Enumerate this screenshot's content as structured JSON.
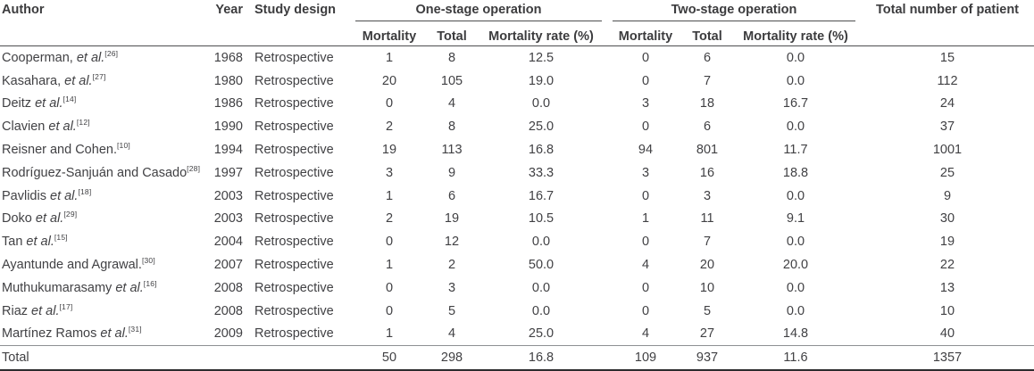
{
  "table": {
    "headers": {
      "author": "Author",
      "year": "Year",
      "study_design": "Study design",
      "one_stage": "One-stage operation",
      "two_stage": "Two-stage operation",
      "sub": [
        "Mortality",
        "Total",
        "Mortality rate (%)"
      ],
      "total_patients": "Total number of patient"
    },
    "rows": [
      {
        "author_name": "Cooperman,",
        "author_etal": "et al.",
        "ref": "[26]",
        "year": "1968",
        "design": "Retrospective",
        "os_mortality": "1",
        "os_total": "8",
        "os_rate": "12.5",
        "ts_mortality": "0",
        "ts_total": "6",
        "ts_rate": "0.0",
        "patients": "15"
      },
      {
        "author_name": "Kasahara,",
        "author_etal": "et al.",
        "ref": "[27]",
        "year": "1980",
        "design": "Retrospective",
        "os_mortality": "20",
        "os_total": "105",
        "os_rate": "19.0",
        "ts_mortality": "0",
        "ts_total": "7",
        "ts_rate": "0.0",
        "patients": "112"
      },
      {
        "author_name": "Deitz",
        "author_etal": "et al.",
        "ref": "[14]",
        "year": "1986",
        "design": "Retrospective",
        "os_mortality": "0",
        "os_total": "4",
        "os_rate": "0.0",
        "ts_mortality": "3",
        "ts_total": "18",
        "ts_rate": "16.7",
        "patients": "24"
      },
      {
        "author_name": "Clavien",
        "author_etal": "et al.",
        "ref": "[12]",
        "year": "1990",
        "design": "Retrospective",
        "os_mortality": "2",
        "os_total": "8",
        "os_rate": "25.0",
        "ts_mortality": "0",
        "ts_total": "6",
        "ts_rate": "0.0",
        "patients": "37"
      },
      {
        "author_name": "Reisner and Cohen.",
        "author_etal": "",
        "ref": "[10]",
        "year": "1994",
        "design": "Retrospective",
        "os_mortality": "19",
        "os_total": "113",
        "os_rate": "16.8",
        "ts_mortality": "94",
        "ts_total": "801",
        "ts_rate": "11.7",
        "patients": "1001"
      },
      {
        "author_name": "Rodríguez-Sanjuán and Casado",
        "author_etal": "",
        "ref": "[28]",
        "year": "1997",
        "design": "Retrospective",
        "os_mortality": "3",
        "os_total": "9",
        "os_rate": "33.3",
        "ts_mortality": "3",
        "ts_total": "16",
        "ts_rate": "18.8",
        "patients": "25"
      },
      {
        "author_name": "Pavlidis",
        "author_etal": "et al.",
        "ref": "[18]",
        "year": "2003",
        "design": "Retrospective",
        "os_mortality": "1",
        "os_total": "6",
        "os_rate": "16.7",
        "ts_mortality": "0",
        "ts_total": "3",
        "ts_rate": "0.0",
        "patients": "9"
      },
      {
        "author_name": "Doko",
        "author_etal": "et al.",
        "ref": "[29]",
        "year": "2003",
        "design": "Retrospective",
        "os_mortality": "2",
        "os_total": "19",
        "os_rate": "10.5",
        "ts_mortality": "1",
        "ts_total": "11",
        "ts_rate": "9.1",
        "patients": "30"
      },
      {
        "author_name": "Tan",
        "author_etal": "et al.",
        "ref": "[15]",
        "year": "2004",
        "design": "Retrospective",
        "os_mortality": "0",
        "os_total": "12",
        "os_rate": "0.0",
        "ts_mortality": "0",
        "ts_total": "7",
        "ts_rate": "0.0",
        "patients": "19"
      },
      {
        "author_name": "Ayantunde and Agrawal.",
        "author_etal": "",
        "ref": "[30]",
        "year": "2007",
        "design": "Retrospective",
        "os_mortality": "1",
        "os_total": "2",
        "os_rate": "50.0",
        "ts_mortality": "4",
        "ts_total": "20",
        "ts_rate": "20.0",
        "patients": "22"
      },
      {
        "author_name": "Muthukumarasamy",
        "author_etal": "et al.",
        "ref": "[16]",
        "year": "2008",
        "design": "Retrospective",
        "os_mortality": "0",
        "os_total": "3",
        "os_rate": "0.0",
        "ts_mortality": "0",
        "ts_total": "10",
        "ts_rate": "0.0",
        "patients": "13"
      },
      {
        "author_name": "Riaz",
        "author_etal": "et al.",
        "ref": "[17]",
        "year": "2008",
        "design": "Retrospective",
        "os_mortality": "0",
        "os_total": "5",
        "os_rate": "0.0",
        "ts_mortality": "0",
        "ts_total": "5",
        "ts_rate": "0.0",
        "patients": "10"
      },
      {
        "author_name": "Martínez Ramos",
        "author_etal": "et al.",
        "ref": "[31]",
        "year": "2009",
        "design": "Retrospective",
        "os_mortality": "1",
        "os_total": "4",
        "os_rate": "25.0",
        "ts_mortality": "4",
        "ts_total": "27",
        "ts_rate": "14.8",
        "patients": "40"
      }
    ],
    "total_row": {
      "label": "Total",
      "os_mortality": "50",
      "os_total": "298",
      "os_rate": "16.8",
      "ts_mortality": "109",
      "ts_total": "937",
      "ts_rate": "11.6",
      "patients": "1357"
    }
  },
  "colors": {
    "text": "#414144",
    "header_line": "#4d4e50",
    "total_top_line": "#8e9093",
    "bottom_line": "#2c2c2e"
  }
}
